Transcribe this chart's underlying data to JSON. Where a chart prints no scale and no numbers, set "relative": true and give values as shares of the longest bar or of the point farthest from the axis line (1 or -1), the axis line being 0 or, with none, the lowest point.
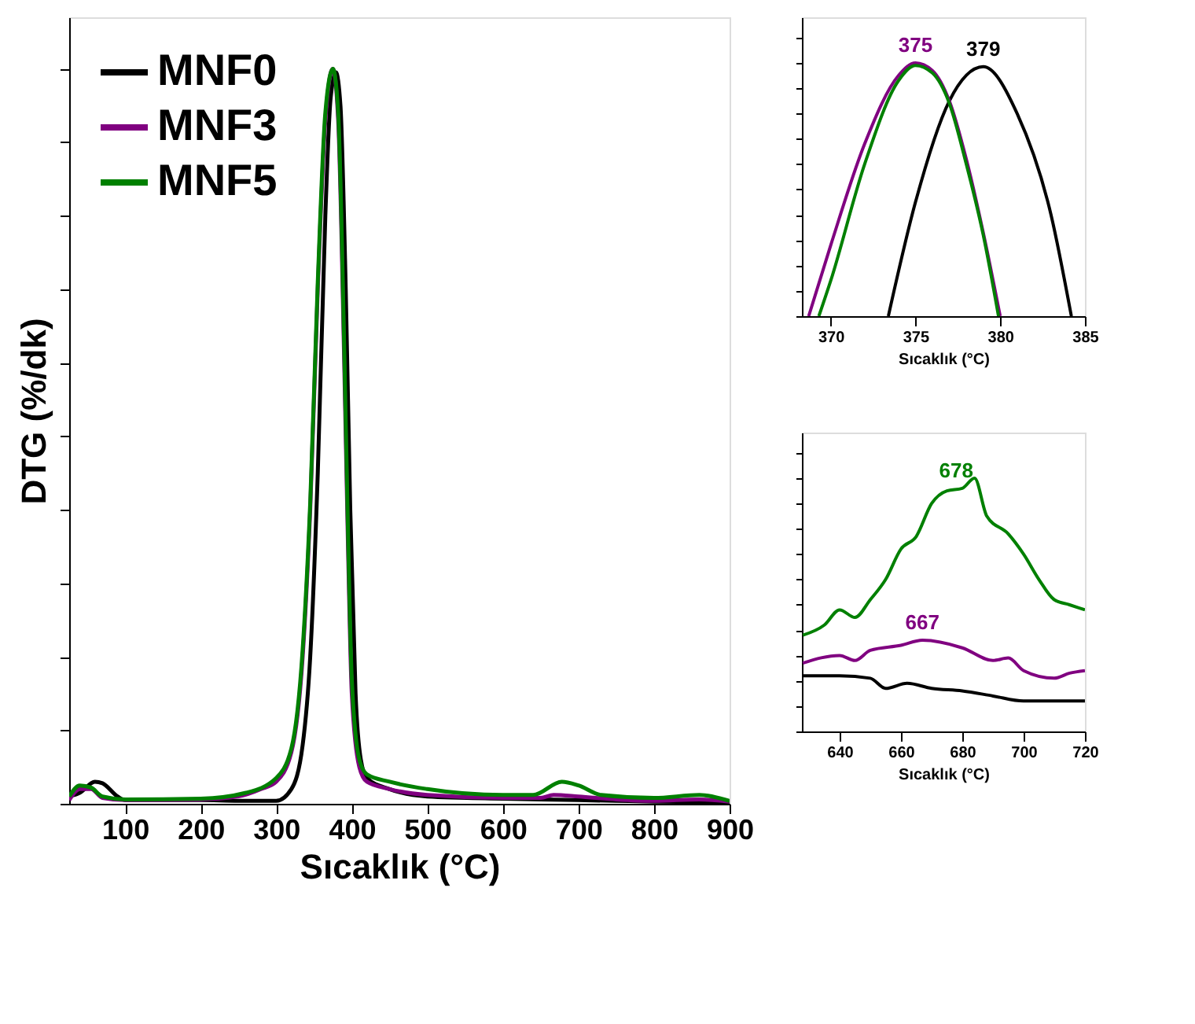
{
  "chart_data": [
    {
      "type": "line",
      "xlabel": "Sıcaklık (°C)",
      "ylabel": "DTG (%/dk)",
      "relative": true,
      "xlim": [
        26,
        900
      ],
      "xticks": [
        100,
        200,
        300,
        400,
        500,
        600,
        700,
        800,
        900
      ],
      "tick_labels": "x",
      "legend": "top left",
      "grid": false,
      "line_style": "solid",
      "marker": "none",
      "series": [
        {
          "name": "MNF0",
          "color": "#000000",
          "x": [
            26,
            40,
            60,
            70,
            90,
            100,
            200,
            250,
            300,
            320,
            335,
            345,
            355,
            365,
            372,
            379,
            385,
            392,
            398,
            405,
            412,
            420,
            450,
            500,
            600,
            650,
            700,
            750,
            800,
            900
          ],
          "values": [
            0.01,
            0.015,
            0.03,
            0.028,
            0.01,
            0.005,
            0.005,
            0.004,
            0.004,
            0.02,
            0.08,
            0.2,
            0.45,
            0.8,
            0.96,
            0.995,
            0.95,
            0.7,
            0.4,
            0.15,
            0.06,
            0.035,
            0.02,
            0.01,
            0.007,
            0.006,
            0.005,
            0.004,
            0.003,
            0.002
          ]
        },
        {
          "name": "MNF3",
          "color": "#800080",
          "x": [
            26,
            40,
            55,
            70,
            100,
            200,
            250,
            280,
            300,
            320,
            335,
            345,
            355,
            365,
            375,
            382,
            390,
            395,
            400,
            410,
            420,
            450,
            500,
            600,
            650,
            667,
            700,
            750,
            800,
            860,
            900
          ],
          "values": [
            0.005,
            0.02,
            0.02,
            0.008,
            0.005,
            0.006,
            0.01,
            0.02,
            0.03,
            0.07,
            0.2,
            0.4,
            0.7,
            0.93,
            1.0,
            0.93,
            0.6,
            0.35,
            0.15,
            0.05,
            0.03,
            0.02,
            0.012,
            0.008,
            0.008,
            0.012,
            0.01,
            0.006,
            0.004,
            0.006,
            0.003
          ]
        },
        {
          "name": "MNF5",
          "color": "#008000",
          "x": [
            26,
            40,
            55,
            70,
            100,
            200,
            260,
            300,
            320,
            335,
            345,
            355,
            365,
            375,
            382,
            390,
            395,
            400,
            410,
            420,
            450,
            500,
            600,
            640,
            678,
            700,
            730,
            800,
            860,
            900
          ],
          "values": [
            0.01,
            0.025,
            0.022,
            0.01,
            0.006,
            0.007,
            0.015,
            0.035,
            0.075,
            0.21,
            0.41,
            0.71,
            0.94,
            1.0,
            0.94,
            0.62,
            0.37,
            0.17,
            0.06,
            0.04,
            0.03,
            0.02,
            0.012,
            0.012,
            0.03,
            0.025,
            0.012,
            0.008,
            0.012,
            0.004
          ]
        }
      ]
    },
    {
      "type": "line",
      "xlabel": "Sıcaklık (°C)",
      "relative": true,
      "xlim": [
        368.3,
        385
      ],
      "xticks": [
        370,
        375,
        380,
        385
      ],
      "tick_labels": "x",
      "grid": false,
      "line_style": "solid",
      "marker": "none",
      "annotations": [
        {
          "text": "375",
          "x": 375,
          "y": 1.0
        },
        {
          "text": "379",
          "x": 379,
          "y": 0.985
        }
      ],
      "series": [
        {
          "color": "#000000",
          "x": [
            373.4,
            375,
            377,
            379,
            381,
            383,
            384.2
          ],
          "values": [
            0,
            0.45,
            0.85,
            0.985,
            0.8,
            0.4,
            0
          ]
        },
        {
          "color": "#800080",
          "x": [
            368.7,
            370,
            372,
            374,
            375,
            376,
            377,
            378,
            379,
            380
          ],
          "values": [
            0,
            0.28,
            0.68,
            0.95,
            1.0,
            0.97,
            0.85,
            0.62,
            0.33,
            0
          ]
        },
        {
          "color": "#008000",
          "x": [
            369.3,
            370,
            372,
            374,
            375,
            376,
            377,
            378,
            379,
            379.9
          ],
          "values": [
            0,
            0.14,
            0.6,
            0.93,
            0.99,
            0.96,
            0.84,
            0.6,
            0.32,
            0
          ]
        }
      ]
    },
    {
      "type": "line",
      "xlabel": "Sıcaklık (°C)",
      "relative": true,
      "xlim": [
        627.7,
        720
      ],
      "xticks": [
        640,
        660,
        680,
        700,
        720
      ],
      "tick_labels": "x",
      "grid": false,
      "line_style": "solid",
      "marker": "none",
      "annotations": [
        {
          "text": "678",
          "x": 678,
          "y": 0.96
        },
        {
          "text": "667",
          "x": 667,
          "y": 0.36
        }
      ],
      "series": [
        {
          "color": "#000000",
          "x": [
            628,
            640,
            650,
            655,
            662,
            670,
            680,
            690,
            700,
            710,
            720
          ],
          "values": [
            0.22,
            0.22,
            0.21,
            0.17,
            0.19,
            0.17,
            0.16,
            0.14,
            0.12,
            0.12,
            0.12
          ]
        },
        {
          "color": "#800080",
          "x": [
            628,
            640,
            645,
            650,
            660,
            667,
            680,
            690,
            695,
            700,
            710,
            715,
            720
          ],
          "values": [
            0.27,
            0.3,
            0.28,
            0.32,
            0.34,
            0.36,
            0.33,
            0.28,
            0.29,
            0.24,
            0.21,
            0.23,
            0.24
          ]
        },
        {
          "color": "#008000",
          "x": [
            628,
            635,
            640,
            645,
            650,
            655,
            660,
            665,
            670,
            675,
            680,
            684,
            688,
            695,
            700,
            705,
            710,
            715,
            720
          ],
          "values": [
            0.38,
            0.42,
            0.48,
            0.45,
            0.52,
            0.6,
            0.72,
            0.77,
            0.9,
            0.95,
            0.96,
            1.0,
            0.85,
            0.78,
            0.7,
            0.6,
            0.52,
            0.5,
            0.48
          ]
        }
      ]
    }
  ]
}
